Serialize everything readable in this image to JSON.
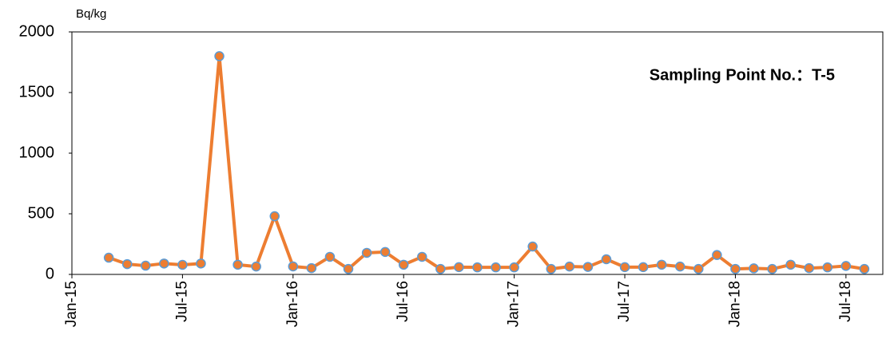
{
  "chart_data": {
    "type": "line",
    "y_axis_label": "Bq/kg",
    "annotation": "Sampling Point No.：T-5",
    "x": [
      "2015-03",
      "2015-04",
      "2015-05",
      "2015-06",
      "2015-07",
      "2015-08",
      "2015-09",
      "2015-10",
      "2015-11",
      "2015-12",
      "2016-01",
      "2016-02",
      "2016-03",
      "2016-04",
      "2016-05",
      "2016-06",
      "2016-07",
      "2016-08",
      "2016-09",
      "2016-10",
      "2016-11",
      "2016-12",
      "2017-01",
      "2017-02",
      "2017-03",
      "2017-04",
      "2017-05",
      "2017-06",
      "2017-07",
      "2017-08",
      "2017-09",
      "2017-10",
      "2017-11",
      "2017-12",
      "2018-01",
      "2018-02",
      "2018-03",
      "2018-04",
      "2018-05",
      "2018-06",
      "2018-07",
      "2018-08"
    ],
    "series": [
      {
        "name": "T-5",
        "color": "#ed7d31",
        "marker_edge": "#5b9bd5",
        "values": [
          138,
          85,
          72,
          90,
          79,
          90,
          1800,
          80,
          65,
          480,
          66,
          52,
          145,
          45,
          178,
          185,
          80,
          145,
          45,
          60,
          58,
          58,
          58,
          230,
          45,
          65,
          62,
          125,
          60,
          60,
          80,
          65,
          45,
          160,
          45,
          50,
          45,
          80,
          52,
          58,
          70,
          45
        ]
      }
    ],
    "xlim": [
      "2015-01",
      "2018-09"
    ],
    "xticks": [
      {
        "value": "2015-01",
        "label": "Jan-15"
      },
      {
        "value": "2015-07",
        "label": "Jul-15"
      },
      {
        "value": "2016-01",
        "label": "Jan-16"
      },
      {
        "value": "2016-07",
        "label": "Jul-16"
      },
      {
        "value": "2017-01",
        "label": "Jan-17"
      },
      {
        "value": "2017-07",
        "label": "Jul-17"
      },
      {
        "value": "2018-01",
        "label": "Jan-18"
      },
      {
        "value": "2018-07",
        "label": "Jul-18"
      }
    ],
    "ylim": [
      0,
      2000
    ],
    "yticks": [
      0,
      500,
      1000,
      1500,
      2000
    ],
    "grid": false,
    "legend": false
  }
}
